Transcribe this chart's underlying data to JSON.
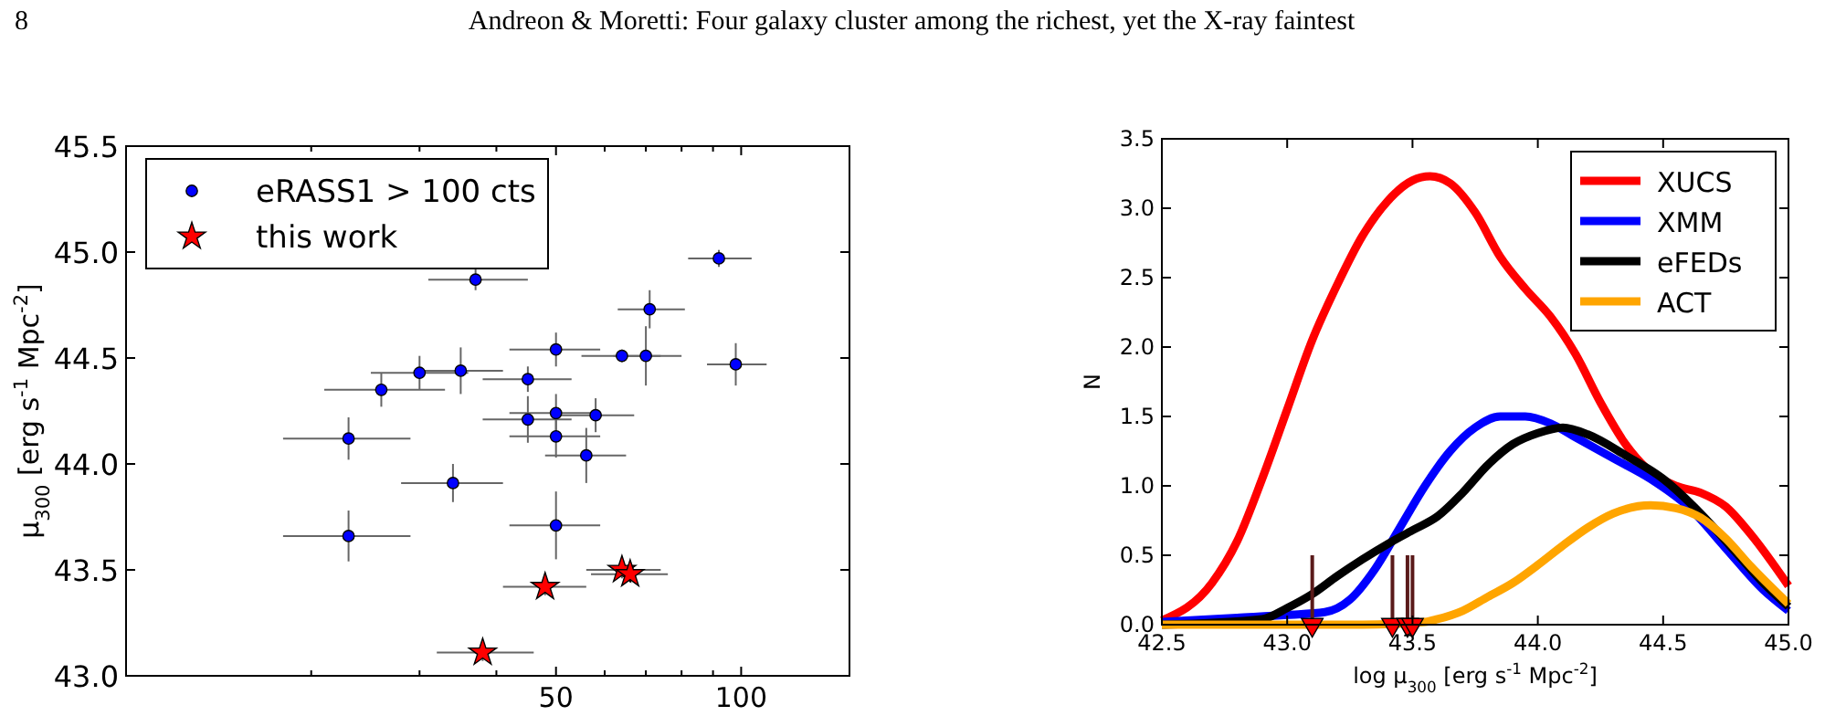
{
  "chart_data": [
    {
      "type": "scatter",
      "annotations": [
        "8",
        "Andreon & Moretti: Four galaxy cluster among the richest, yet the X-ray faintest"
      ],
      "ylabel": "μ$_{300}$ [erg s$^{-1}$ Mpc$^{-2}$]",
      "log": "x",
      "xlim": [
        10,
        150
      ],
      "xticks": [
        {
          "value": 20,
          "label": null
        },
        {
          "value": 30,
          "label": null
        },
        {
          "value": 40,
          "label": null
        },
        50,
        {
          "value": 60,
          "label": null
        },
        {
          "value": 70,
          "label": null
        },
        {
          "value": 80,
          "label": null
        },
        {
          "value": 90,
          "label": null
        },
        100
      ],
      "ylim": [
        43.0,
        45.5
      ],
      "yticks": [
        {
          "value": 43.0,
          "label": "43.0"
        },
        {
          "value": 43.5,
          "label": "43.5"
        },
        {
          "value": 44.0,
          "label": "44.0"
        },
        {
          "value": 44.5,
          "label": "44.5"
        },
        {
          "value": 45.0,
          "label": "45.0"
        },
        {
          "value": 45.5,
          "label": "45.5"
        }
      ],
      "grid": false,
      "legend": "top left",
      "series": [
        {
          "name": "eRASS1 > 100 cts",
          "color": "#0000ff",
          "marker": "circle",
          "x": [
            37,
            92,
            71,
            50,
            64,
            70,
            98,
            30,
            35,
            26,
            45,
            45,
            50,
            58,
            50,
            56,
            23,
            34,
            23,
            50
          ],
          "values": [
            44.87,
            44.97,
            44.73,
            44.54,
            44.51,
            44.51,
            44.47,
            44.43,
            44.44,
            44.35,
            44.4,
            44.21,
            44.24,
            44.23,
            44.13,
            44.04,
            44.12,
            43.91,
            43.66,
            43.71
          ],
          "errors": [
            0.05,
            0.04,
            0.09,
            0.08,
            0.03,
            0.14,
            0.1,
            0.08,
            0.11,
            0.08,
            0.06,
            0.11,
            0.09,
            0.08,
            0.1,
            0.13,
            0.1,
            0.09,
            0.12,
            0.16
          ],
          "xerrors": [
            [
              31,
              45
            ],
            [
              82,
              104
            ],
            [
              63,
              81
            ],
            [
              42,
              59
            ],
            [
              55,
              74
            ],
            [
              62,
              80
            ],
            [
              88,
              110
            ],
            [
              25,
              36
            ],
            [
              30,
              41
            ],
            [
              21,
              33
            ],
            [
              38,
              53
            ],
            [
              38,
              53
            ],
            [
              42,
              59
            ],
            [
              51,
              67
            ],
            [
              42,
              59
            ],
            [
              48,
              65
            ],
            [
              18,
              29
            ],
            [
              28,
              41
            ],
            [
              18,
              29
            ],
            [
              42,
              59
            ]
          ]
        },
        {
          "name": "this work",
          "color": "#ff0000",
          "marker": "star",
          "x": [
            38,
            48,
            64,
            66
          ],
          "values": [
            43.11,
            43.42,
            43.5,
            43.48
          ],
          "errors": [
            0.04,
            0.04,
            0.04,
            0.04
          ],
          "xerrors": [
            [
              32,
              46
            ],
            [
              41,
              56
            ],
            [
              56,
              74
            ],
            [
              57,
              76
            ]
          ]
        }
      ]
    },
    {
      "type": "line",
      "xlabel": "log μ$_{300}$ [erg s$^{-1}$ Mpc$^{-2}$]",
      "ylabel": "N",
      "xlim": [
        42.5,
        45.0
      ],
      "xticks": [
        {
          "value": 42.5,
          "label": "42.5"
        },
        {
          "value": 43.0,
          "label": "43.0"
        },
        {
          "value": 43.5,
          "label": "43.5"
        },
        {
          "value": 44.0,
          "label": "44.0"
        },
        {
          "value": 44.5,
          "label": "44.5"
        },
        {
          "value": 45.0,
          "label": "45.0"
        }
      ],
      "ylim": [
        0,
        3.5
      ],
      "yticks": [
        {
          "value": 0,
          "label": "0.0"
        },
        {
          "value": 0.5,
          "label": "0.5"
        },
        {
          "value": 1.0,
          "label": "1.0"
        },
        {
          "value": 1.5,
          "label": "1.5"
        },
        {
          "value": 2.0,
          "label": "2.0"
        },
        {
          "value": 2.5,
          "label": "2.5"
        },
        {
          "value": 3.0,
          "label": "3.0"
        },
        {
          "value": 3.5,
          "label": "3.5"
        }
      ],
      "grid": false,
      "legend": "top right",
      "series": [
        {
          "name": "XUCS",
          "color": "#ff0000",
          "x": [
            42.5,
            42.7,
            42.8,
            42.9,
            43.0,
            43.1,
            43.2,
            43.3,
            43.4,
            43.5,
            43.57,
            43.65,
            43.75,
            43.85,
            43.95,
            44.05,
            44.15,
            44.25,
            44.35,
            44.45,
            44.55,
            44.65,
            44.75,
            44.85,
            45.0
          ],
          "values": [
            0.03,
            0.3,
            0.6,
            1.05,
            1.55,
            2.05,
            2.45,
            2.8,
            3.05,
            3.2,
            3.23,
            3.18,
            2.97,
            2.65,
            2.42,
            2.22,
            1.95,
            1.6,
            1.3,
            1.1,
            1.0,
            0.95,
            0.85,
            0.65,
            0.28
          ]
        },
        {
          "name": "XMM",
          "color": "#0000ff",
          "x": [
            42.5,
            42.8,
            43.0,
            43.15,
            43.25,
            43.35,
            43.45,
            43.55,
            43.65,
            43.75,
            43.85,
            43.95,
            44.05,
            44.15,
            44.3,
            44.45,
            44.6,
            44.75,
            44.9,
            45.0
          ],
          "values": [
            0.02,
            0.05,
            0.07,
            0.09,
            0.18,
            0.4,
            0.7,
            1.0,
            1.25,
            1.42,
            1.5,
            1.5,
            1.45,
            1.35,
            1.2,
            1.05,
            0.85,
            0.55,
            0.25,
            0.1
          ]
        },
        {
          "name": "eFEDs",
          "color": "#000000",
          "x": [
            42.5,
            42.9,
            43.0,
            43.1,
            43.2,
            43.3,
            43.4,
            43.5,
            43.6,
            43.7,
            43.8,
            43.9,
            44.0,
            44.1,
            44.2,
            44.35,
            44.5,
            44.65,
            44.8,
            44.9,
            45.0
          ],
          "values": [
            0.0,
            0.04,
            0.12,
            0.22,
            0.35,
            0.47,
            0.58,
            0.68,
            0.78,
            0.95,
            1.15,
            1.3,
            1.38,
            1.42,
            1.37,
            1.22,
            1.05,
            0.8,
            0.5,
            0.3,
            0.13
          ]
        },
        {
          "name": "ACT",
          "color": "#ffa500",
          "x": [
            42.5,
            43.3,
            43.55,
            43.6,
            43.7,
            43.8,
            43.9,
            44.0,
            44.1,
            44.2,
            44.3,
            44.45,
            44.55,
            44.65,
            44.75,
            44.85,
            45.0
          ],
          "values": [
            0,
            0,
            0.02,
            0.04,
            0.1,
            0.2,
            0.3,
            0.43,
            0.57,
            0.7,
            0.8,
            0.86,
            0.84,
            0.77,
            0.62,
            0.42,
            0.15
          ]
        },
        {
          "type": "scatter",
          "color": "#ff0000",
          "marker": "triangle",
          "x": [
            43.1,
            43.42,
            43.48,
            43.5
          ],
          "values": [
            0,
            0,
            0,
            0
          ],
          "errors": [
            [
              0,
              0.5
            ],
            [
              0,
              0.5
            ],
            [
              0,
              0.5
            ],
            [
              0,
              0.5
            ]
          ]
        }
      ]
    }
  ]
}
